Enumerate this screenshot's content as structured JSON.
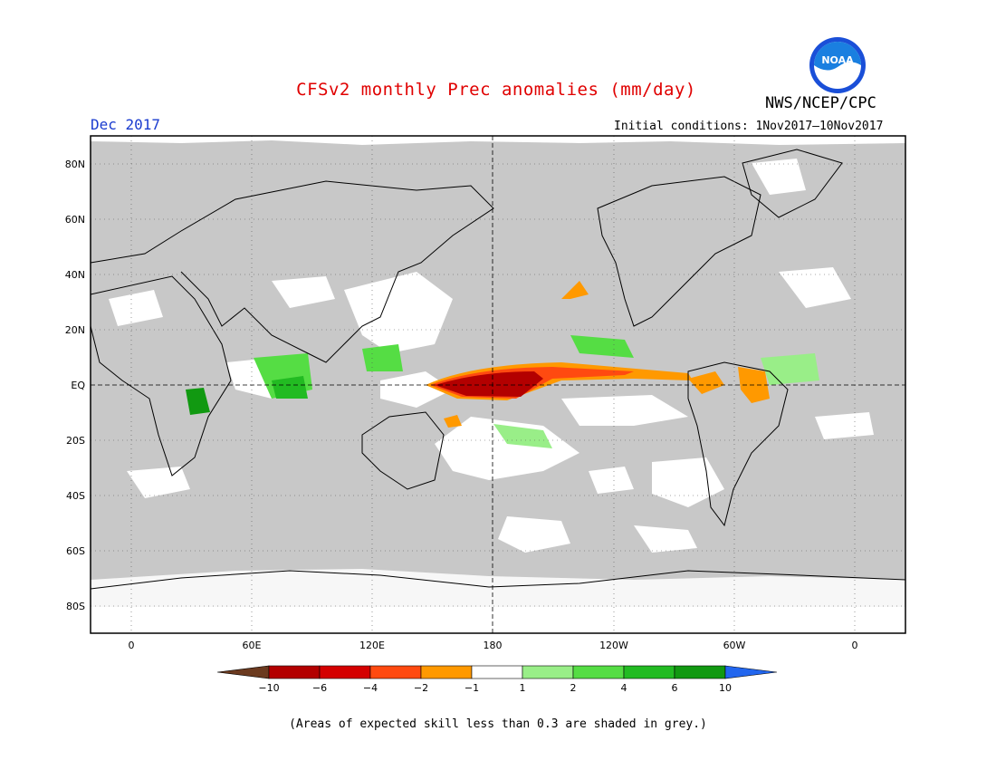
{
  "title": "CFSv2 monthly Prec anomalies (mm/day)",
  "organization": "NWS/NCEP/CPC",
  "logo_text": "NOAA",
  "month": "Dec 2017",
  "initial_conditions": "Initial conditions: 1Nov2017–10Nov2017",
  "footnote": "(Areas of expected skill less than 0.3 are shaded in grey.)",
  "lat_labels": [
    "80N",
    "60N",
    "40N",
    "20N",
    "EQ",
    "20S",
    "40S",
    "60S",
    "80S"
  ],
  "lon_labels": [
    "0",
    "60E",
    "120E",
    "180",
    "120W",
    "60W",
    "0"
  ],
  "colorbar": {
    "labels": [
      "−10",
      "−6",
      "−4",
      "−2",
      "−1",
      "1",
      "2",
      "4",
      "6",
      "10"
    ],
    "colors": [
      "#6b3a1f",
      "#b30000",
      "#d40000",
      "#ff4a10",
      "#ff9900",
      "#ffffff",
      "#99ee88",
      "#55dd44",
      "#22bb22",
      "#119911",
      "#2266ee"
    ]
  },
  "colors": {
    "skill_grey": "#c8c8c8",
    "title_red": "#e00000",
    "month_blue": "#1a3ccf"
  }
}
